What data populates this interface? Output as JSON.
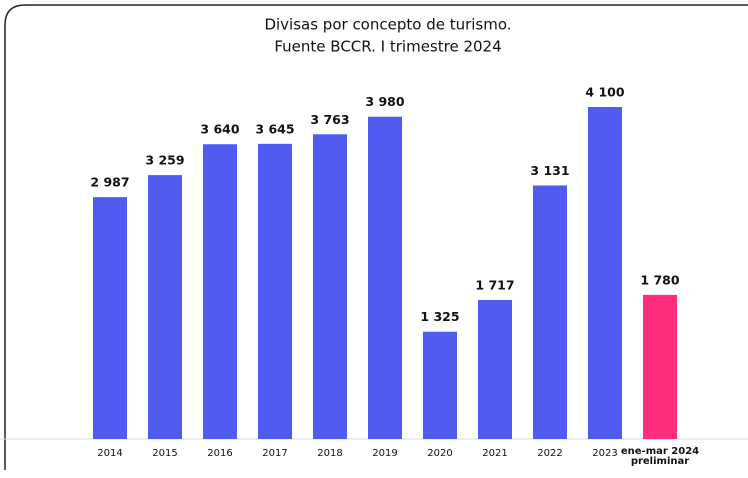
{
  "chart_data": {
    "type": "bar",
    "title": [
      "Divisas por concepto de turismo.",
      "Fuente BCCR. I trimestre 2024"
    ],
    "categories": [
      "2014",
      "2015",
      "2016",
      "2017",
      "2018",
      "2019",
      "2020",
      "2021",
      "2022",
      "2023",
      "ene-mar 2024\npreliminar"
    ],
    "values": [
      2987,
      3259,
      3640,
      3645,
      3763,
      3980,
      1325,
      1717,
      3131,
      4100,
      1780
    ],
    "value_labels": [
      "2 987",
      "3 259",
      "3 640",
      "3 645",
      "3 763",
      "3 980",
      "1 325",
      "1 717",
      "3 131",
      "4 100",
      "1 780"
    ],
    "colors": [
      "#4f5cef",
      "#4f5cef",
      "#4f5cef",
      "#4f5cef",
      "#4f5cef",
      "#4f5cef",
      "#4f5cef",
      "#4f5cef",
      "#4f5cef",
      "#4f5cef",
      "#ff2d7d"
    ]
  }
}
